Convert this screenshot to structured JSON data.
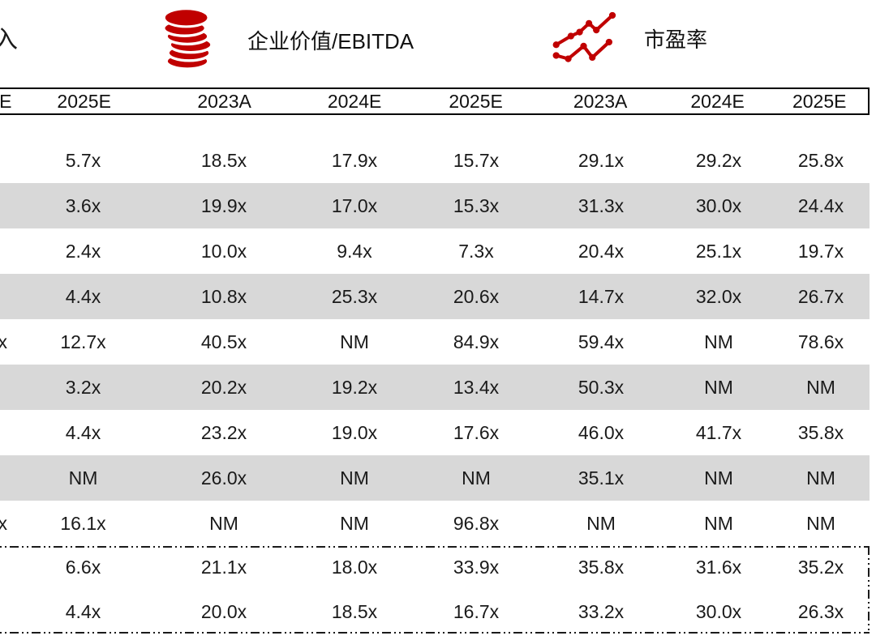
{
  "page": {
    "background": "#ffffff",
    "accent_red": "#c00000",
    "stripe_gray": "#d8d8d8",
    "text_color": "#1a1a1a"
  },
  "legend": {
    "left_partial": "入",
    "items": [
      {
        "icon": "coin-stack-icon",
        "label": "企业价值/EBITDA"
      },
      {
        "icon": "line-chart-icon",
        "label": "市盈率"
      }
    ]
  },
  "chart_data": {
    "type": "table",
    "column_groups": [
      {
        "label": "企业价值/EBITDA",
        "columns": [
          "2023A",
          "2024E",
          "2025E"
        ]
      },
      {
        "label": "市盈率",
        "columns": [
          "2023A",
          "2024E",
          "2025E"
        ]
      }
    ],
    "columns": [
      "E",
      "2025E",
      "2023A",
      "2024E",
      "2025E",
      "2023A",
      "2024E",
      "2025E"
    ],
    "rows": [
      [
        "",
        "5.7x",
        "18.5x",
        "17.9x",
        "15.7x",
        "29.1x",
        "29.2x",
        "25.8x"
      ],
      [
        "",
        "3.6x",
        "19.9x",
        "17.0x",
        "15.3x",
        "31.3x",
        "30.0x",
        "24.4x"
      ],
      [
        "",
        "2.4x",
        "10.0x",
        "9.4x",
        "7.3x",
        "20.4x",
        "25.1x",
        "19.7x"
      ],
      [
        "",
        "4.4x",
        "10.8x",
        "25.3x",
        "20.6x",
        "14.7x",
        "32.0x",
        "26.7x"
      ],
      [
        "x",
        "12.7x",
        "40.5x",
        "NM",
        "84.9x",
        "59.4x",
        "NM",
        "78.6x"
      ],
      [
        "",
        "3.2x",
        "20.2x",
        "19.2x",
        "13.4x",
        "50.3x",
        "NM",
        "NM"
      ],
      [
        "",
        "4.4x",
        "23.2x",
        "19.0x",
        "17.6x",
        "46.0x",
        "41.7x",
        "35.8x"
      ],
      [
        "",
        "NM",
        "26.0x",
        "NM",
        "NM",
        "35.1x",
        "NM",
        "NM"
      ],
      [
        "x",
        "16.1x",
        "NM",
        "NM",
        "96.8x",
        "NM",
        "NM",
        "NM"
      ]
    ],
    "summary_rows": [
      [
        "",
        "6.6x",
        "21.1x",
        "18.0x",
        "33.9x",
        "35.8x",
        "31.6x",
        "35.2x"
      ],
      [
        "",
        "4.4x",
        "20.0x",
        "18.5x",
        "16.7x",
        "33.2x",
        "30.0x",
        "26.3x"
      ]
    ]
  }
}
